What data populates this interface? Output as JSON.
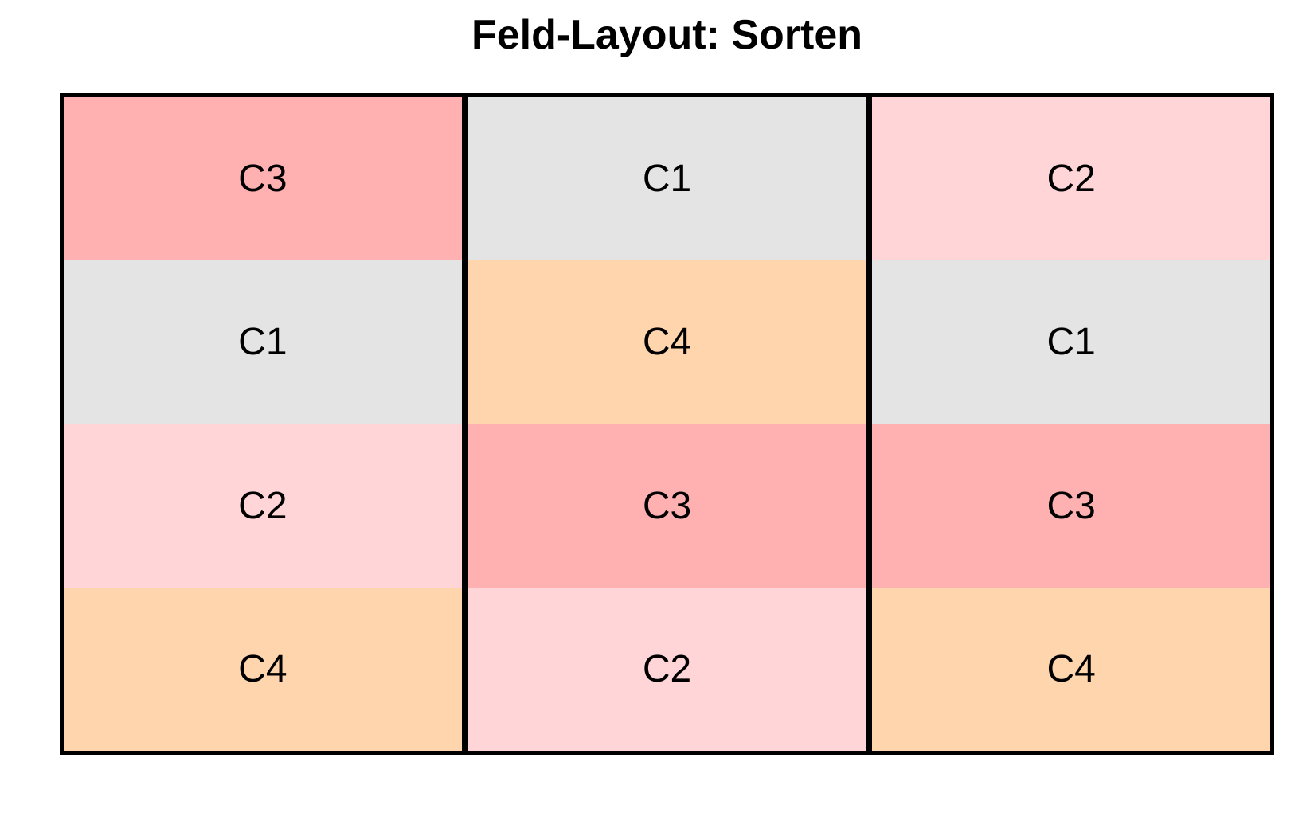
{
  "title": "Feld-Layout: Sorten",
  "palette": {
    "C1": "#E4E4E4",
    "C2": "#FFD5D8",
    "C3": "#FFB1B1",
    "C4": "#FFD5AD"
  },
  "border_color": "#000000",
  "grid_columns": [
    {
      "cells": [
        "C3",
        "C1",
        "C2",
        "C4"
      ]
    },
    {
      "cells": [
        "C1",
        "C4",
        "C3",
        "C2"
      ]
    },
    {
      "cells": [
        "C2",
        "C1",
        "C3",
        "C4"
      ]
    }
  ],
  "chart_data": {
    "type": "heatmap",
    "title": "Feld-Layout: Sorten",
    "n_rows": 4,
    "n_cols": 3,
    "grid_rows_top_to_bottom": [
      [
        "C3",
        "C1",
        "C2"
      ],
      [
        "C1",
        "C4",
        "C1"
      ],
      [
        "C2",
        "C3",
        "C3"
      ],
      [
        "C4",
        "C2",
        "C4"
      ]
    ],
    "cell_labels": [
      "C1",
      "C2",
      "C3",
      "C4"
    ],
    "cell_colors": {
      "C1": "#E4E4E4",
      "C2": "#FFD5D8",
      "C3": "#FFB1B1",
      "C4": "#FFD5AD"
    },
    "legend": "none",
    "axes": "none",
    "grid_lines": "thick black vertical dividers between the 3 columns; no horizontal dividers"
  }
}
